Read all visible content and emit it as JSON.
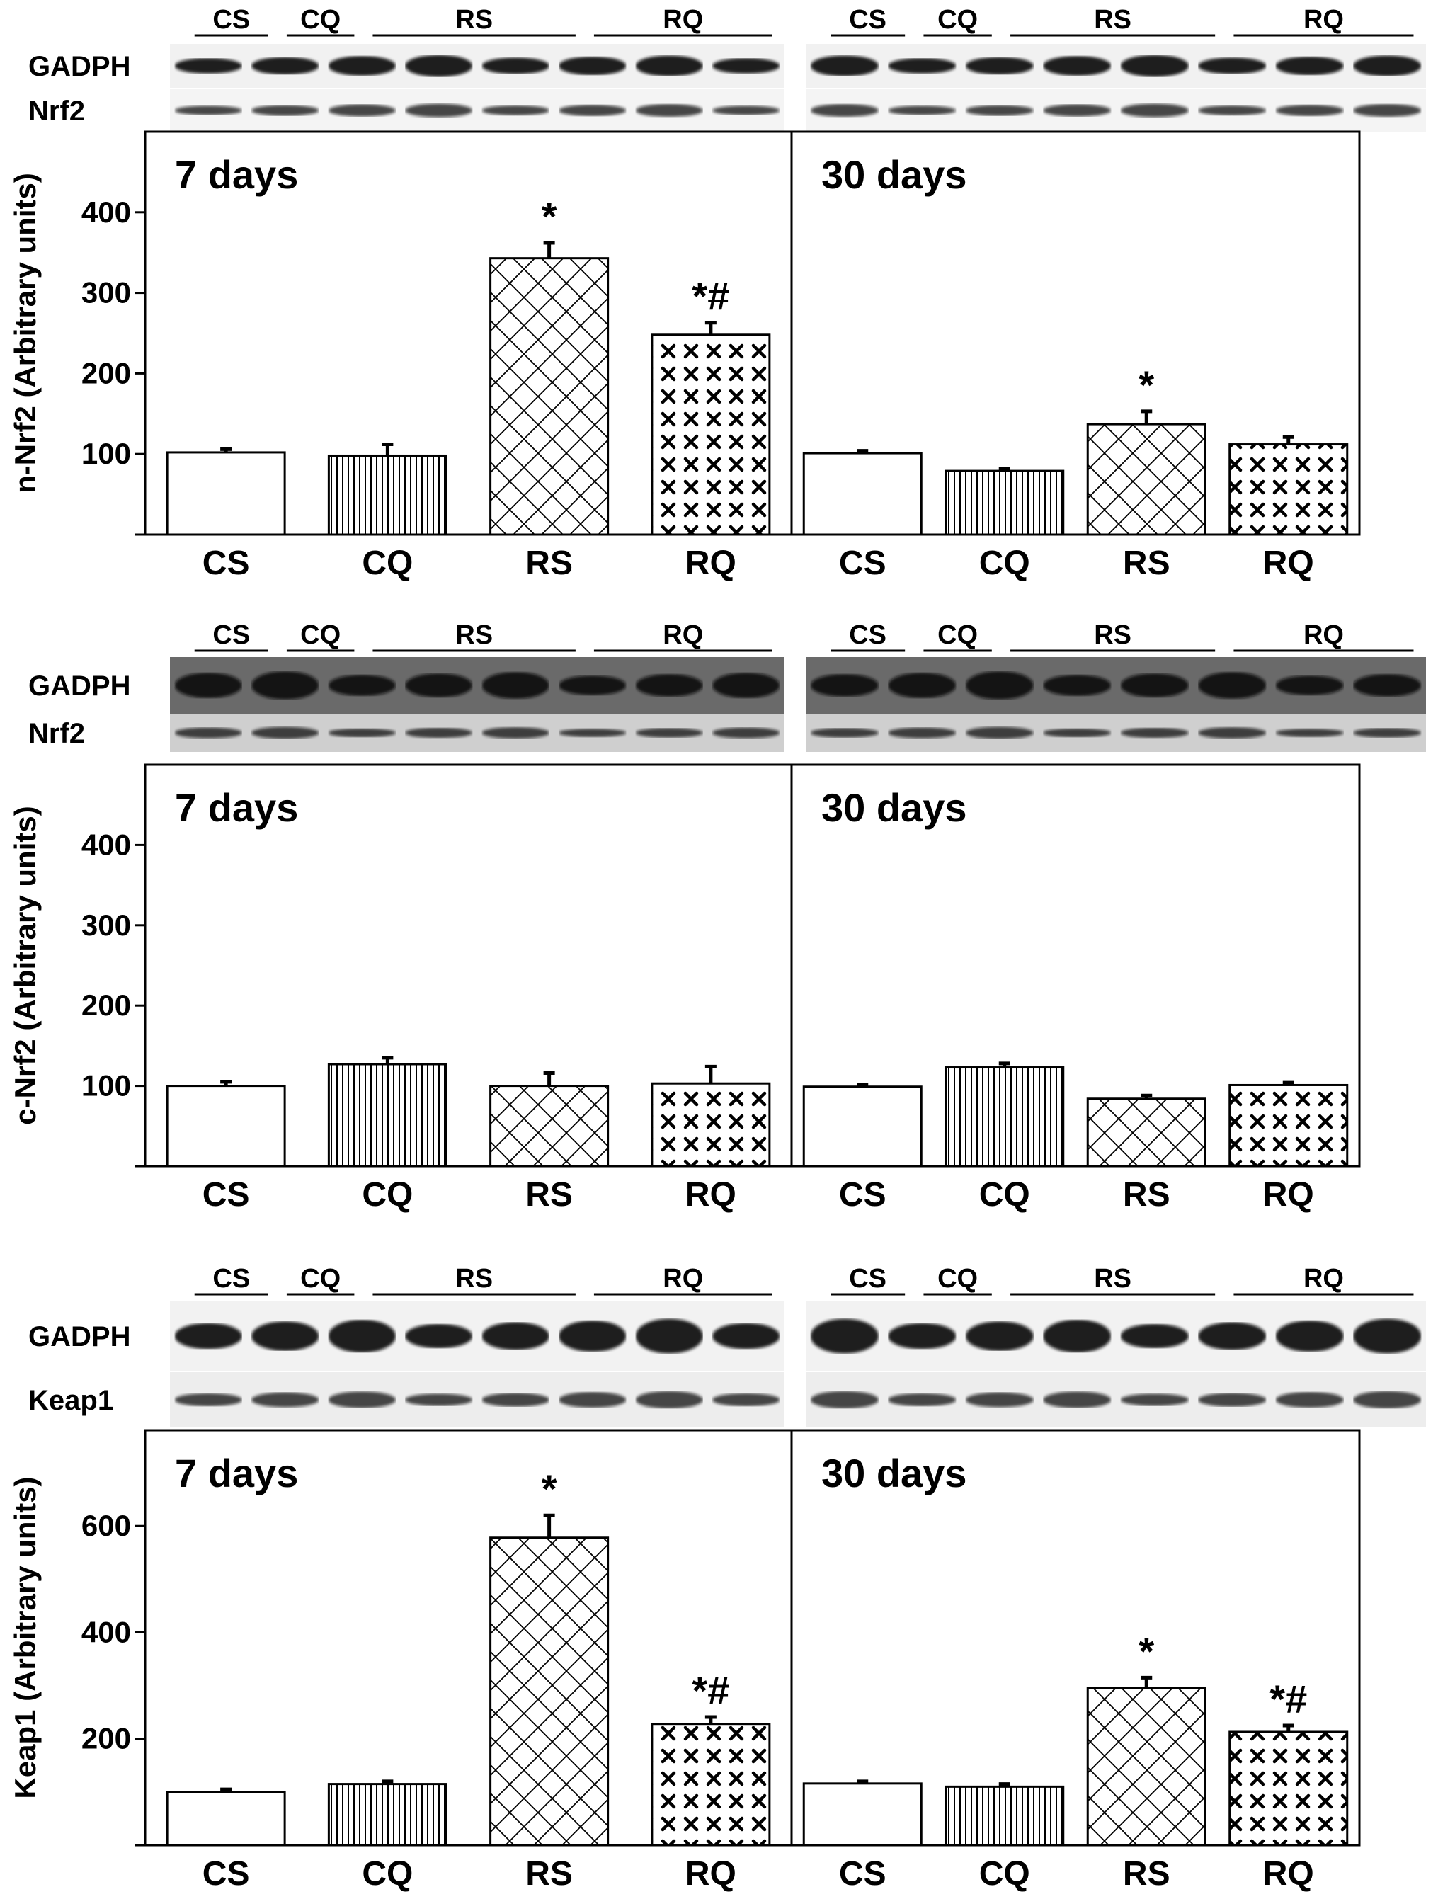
{
  "blot_lane_groups": [
    "CS",
    "CQ",
    "RS",
    "RQ"
  ],
  "figure_panels": [
    {
      "id": "n-nrf2",
      "blot_labels": [
        "GADPH",
        "Nrf2"
      ],
      "chart_data": [
        {
          "type": "bar",
          "title": "7 days",
          "ylabel": "n-Nrf2 (Arbitrary units)",
          "categories": [
            "CS",
            "CQ",
            "RS",
            "RQ"
          ],
          "values": [
            102,
            98,
            343,
            248
          ],
          "errors": [
            4,
            14,
            19,
            15
          ],
          "significance": [
            "",
            "",
            "*",
            "*#"
          ],
          "yticks": [
            100,
            200,
            300,
            400
          ],
          "ylim": [
            0,
            500
          ]
        },
        {
          "type": "bar",
          "title": "30 days",
          "ylabel": "",
          "categories": [
            "CS",
            "CQ",
            "RS",
            "RQ"
          ],
          "values": [
            101,
            79,
            137,
            112
          ],
          "errors": [
            3,
            3,
            16,
            9
          ],
          "significance": [
            "",
            "",
            "*",
            ""
          ],
          "yticks": [],
          "ylim": [
            0,
            500
          ]
        }
      ]
    },
    {
      "id": "c-nrf2",
      "blot_labels": [
        "GADPH",
        "Nrf2"
      ],
      "chart_data": [
        {
          "type": "bar",
          "title": "7 days",
          "ylabel": "c-Nrf2 (Arbitrary units)",
          "categories": [
            "CS",
            "CQ",
            "RS",
            "RQ"
          ],
          "values": [
            100,
            127,
            100,
            103
          ],
          "errors": [
            5,
            8,
            16,
            21
          ],
          "significance": [
            "",
            "",
            "",
            ""
          ],
          "yticks": [
            100,
            200,
            300,
            400
          ],
          "ylim": [
            0,
            500
          ]
        },
        {
          "type": "bar",
          "title": "30 days",
          "ylabel": "",
          "categories": [
            "CS",
            "CQ",
            "RS",
            "RQ"
          ],
          "values": [
            99,
            123,
            84,
            101
          ],
          "errors": [
            2,
            5,
            4,
            3
          ],
          "significance": [
            "",
            "",
            "",
            ""
          ],
          "yticks": [],
          "ylim": [
            0,
            500
          ]
        }
      ]
    },
    {
      "id": "keap1",
      "blot_labels": [
        "GADPH",
        "Keap1"
      ],
      "chart_data": [
        {
          "type": "bar",
          "title": "7 days",
          "ylabel": "Keap1 (Arbitrary units)",
          "categories": [
            "CS",
            "CQ",
            "RS",
            "RQ"
          ],
          "values": [
            100,
            115,
            578,
            228
          ],
          "errors": [
            5,
            5,
            42,
            13
          ],
          "significance": [
            "",
            "",
            "*",
            "*#"
          ],
          "yticks": [
            200,
            400,
            600
          ],
          "ylim": [
            0,
            780
          ]
        },
        {
          "type": "bar",
          "title": "30 days",
          "ylabel": "",
          "categories": [
            "CS",
            "CQ",
            "RS",
            "RQ"
          ],
          "values": [
            116,
            110,
            295,
            213
          ],
          "errors": [
            4,
            5,
            20,
            12
          ],
          "significance": [
            "",
            "",
            "*",
            "*#"
          ],
          "yticks": [],
          "ylim": [
            0,
            780
          ]
        }
      ]
    }
  ],
  "palette": {
    "ink": "#000000",
    "background": "#ffffff",
    "blot_light": "#e2e2e2",
    "blot_dark": "#5e5e5e",
    "band": "#111111"
  },
  "bar_patterns": [
    "blank",
    "vertical-lines",
    "crosshatch",
    "x-marks"
  ]
}
